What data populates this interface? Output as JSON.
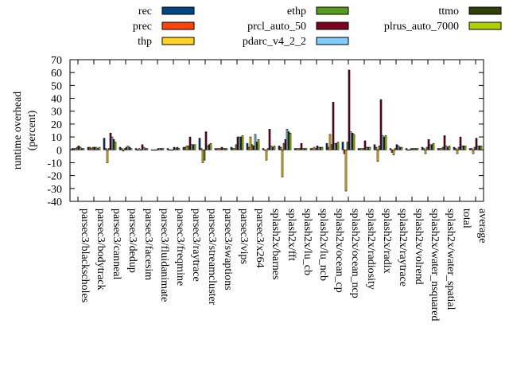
{
  "chart_data": {
    "type": "bar",
    "y_label": [
      "runtime overhead",
      "(percent)"
    ],
    "categories": [
      "parsec3/blackscholes",
      "parsec3/bodytrack",
      "parsec3/canneal",
      "parsec3/dedup",
      "parsec3/facesim",
      "parsec3/fluidanimate",
      "parsec3/freqmine",
      "parsec3/raytrace",
      "parsec3/streamcluster",
      "parsec3/swaptions",
      "parsec3/vips",
      "parsec3/x264",
      "splash2x/barnes",
      "splash2x/fft",
      "splash2x/lu_cb",
      "splash2x/lu_ncb",
      "splash2x/ocean_cp",
      "splash2x/ocean_ncp",
      "splash2x/radiosity",
      "splash2x/radix",
      "splash2x/raytrace",
      "splash2x/volrend",
      "splash2x/water_nsquared",
      "splash2x/water_spatial",
      "total",
      "average"
    ],
    "series": [
      {
        "name": "rec",
        "color": "#004586",
        "values": [
          1,
          2,
          9,
          2,
          1,
          0,
          1,
          2,
          9,
          1,
          2,
          5,
          1,
          3,
          1,
          1,
          5,
          6,
          1,
          4,
          1,
          1,
          2,
          1,
          2,
          1
        ]
      },
      {
        "name": "prec",
        "color": "#ff420e",
        "values": [
          1,
          2,
          1,
          1,
          0,
          0,
          0,
          2,
          1,
          1,
          1,
          2,
          0,
          2,
          1,
          1,
          2,
          -3,
          1,
          2,
          -2,
          0,
          1,
          1,
          1,
          1
        ]
      },
      {
        "name": "thp",
        "color": "#ffd320",
        "values": [
          1,
          1,
          -10,
          -1,
          1,
          0,
          0,
          3,
          -10,
          1,
          1,
          10,
          -8,
          -21,
          1,
          2,
          12,
          -32,
          1,
          -9,
          -4,
          0,
          -3,
          1,
          -3,
          -3
        ]
      },
      {
        "name": "ethp",
        "color": "#579d1c",
        "values": [
          2,
          2,
          1,
          1,
          0,
          0,
          0,
          3,
          -8,
          1,
          4,
          4,
          1,
          5,
          1,
          1,
          4,
          6,
          1,
          3,
          1,
          1,
          2,
          2,
          2,
          2
        ]
      },
      {
        "name": "prcl_auto_50",
        "color": "#7e0021",
        "values": [
          3,
          2,
          13,
          2,
          4,
          1,
          2,
          10,
          14,
          2,
          10,
          3,
          16,
          8,
          5,
          3,
          37,
          62,
          7,
          39,
          4,
          1,
          8,
          11,
          10,
          9
        ]
      },
      {
        "name": "pdarc_v4_2_2",
        "color": "#83caff",
        "values": [
          2,
          2,
          10,
          3,
          2,
          1,
          1,
          4,
          3,
          1,
          10,
          12,
          3,
          16,
          1,
          2,
          5,
          14,
          2,
          11,
          3,
          1,
          4,
          3,
          3,
          3
        ]
      },
      {
        "name": "ttmo",
        "color": "#314004",
        "values": [
          1,
          1,
          8,
          2,
          1,
          1,
          2,
          4,
          4,
          1,
          10,
          6,
          2,
          14,
          1,
          2,
          5,
          13,
          2,
          10,
          2,
          1,
          4,
          2,
          3,
          3
        ]
      },
      {
        "name": "plrus_auto_7000",
        "color": "#aecf00",
        "values": [
          1,
          2,
          6,
          1,
          1,
          1,
          1,
          4,
          5,
          1,
          11,
          8,
          3,
          13,
          1,
          2,
          6,
          12,
          2,
          11,
          2,
          1,
          5,
          3,
          3,
          3
        ]
      }
    ],
    "ylim": [
      -40,
      70
    ],
    "yticks": [
      -40,
      -30,
      -20,
      -10,
      0,
      10,
      20,
      30,
      40,
      50,
      60,
      70
    ]
  }
}
